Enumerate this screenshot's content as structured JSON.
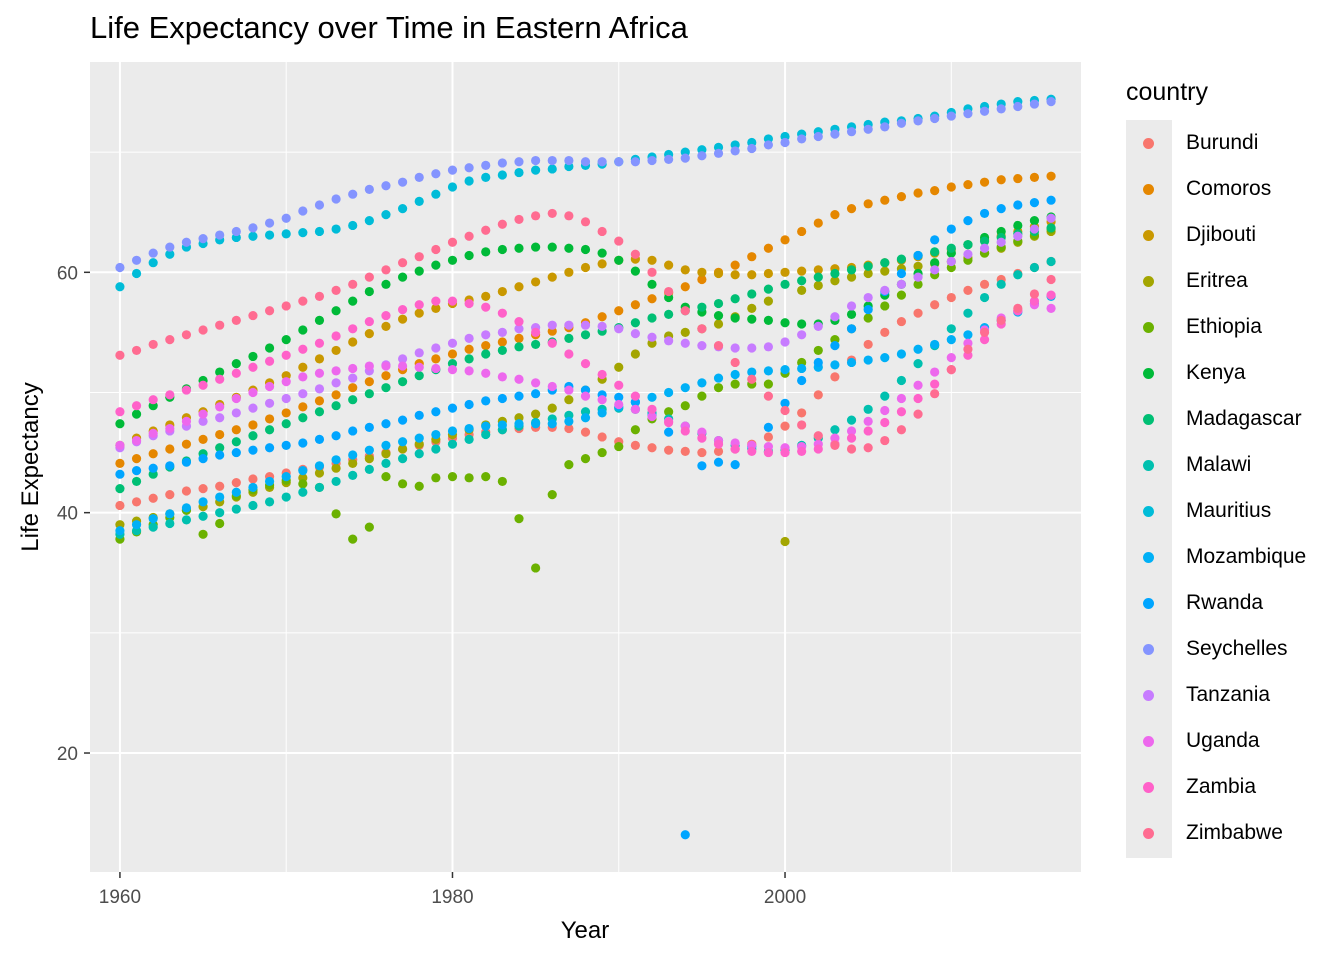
{
  "chart_data": {
    "type": "scatter",
    "title": "Life Expectancy over Time in Eastern Africa",
    "xlabel": "Year",
    "ylabel": "Life Expectancy",
    "xlim": [
      1958.2,
      2017.8
    ],
    "ylim": [
      10.1,
      77.5
    ],
    "xticks": [
      1960,
      1980,
      2000
    ],
    "yticks": [
      20,
      40,
      60
    ],
    "grid": true,
    "legend_title": "country",
    "legend_position": "right",
    "series": [
      {
        "name": "Burundi",
        "color": "#F8766D",
        "x_start": 1960,
        "values": [
          40.6,
          40.9,
          41.2,
          41.5,
          41.8,
          42.0,
          42.2,
          42.5,
          42.8,
          43.0,
          43.3,
          43.6,
          43.8,
          44.1,
          44.4,
          44.7,
          45.0,
          45.3,
          45.6,
          45.9,
          46.2,
          46.5,
          46.7,
          46.9,
          47.0,
          47.1,
          47.1,
          47.0,
          46.7,
          46.3,
          45.9,
          45.6,
          45.4,
          45.2,
          45.1,
          45.0,
          45.1,
          45.3,
          45.7,
          46.3,
          47.2,
          48.3,
          49.8,
          51.3,
          52.7,
          54.0,
          55.0,
          55.9,
          56.6,
          57.3,
          57.9,
          58.5,
          59.0,
          59.4,
          59.9,
          60.4,
          60.9
        ]
      },
      {
        "name": "Comoros",
        "color": "#E58700",
        "x_start": 1960,
        "values": [
          44.1,
          44.5,
          44.9,
          45.3,
          45.7,
          46.1,
          46.5,
          46.9,
          47.3,
          47.8,
          48.3,
          48.8,
          49.3,
          49.8,
          50.4,
          50.9,
          51.4,
          51.9,
          52.4,
          52.8,
          53.2,
          53.6,
          53.9,
          54.2,
          54.5,
          54.8,
          55.1,
          55.4,
          55.8,
          56.3,
          56.8,
          57.3,
          57.8,
          58.3,
          58.8,
          59.4,
          60.0,
          60.6,
          61.3,
          62.0,
          62.7,
          63.4,
          64.1,
          64.8,
          65.3,
          65.7,
          66.0,
          66.3,
          66.6,
          66.8,
          67.1,
          67.3,
          67.5,
          67.7,
          67.8,
          67.9,
          68.0
        ]
      },
      {
        "name": "Djibouti",
        "color": "#C99800",
        "x_start": 1960,
        "values": [
          45.6,
          46.2,
          46.8,
          47.3,
          47.9,
          48.4,
          49.0,
          49.6,
          50.2,
          50.8,
          51.4,
          52.1,
          52.8,
          53.5,
          54.2,
          54.9,
          55.5,
          56.1,
          56.6,
          57.0,
          57.4,
          57.7,
          58.0,
          58.4,
          58.8,
          59.2,
          59.6,
          60.0,
          60.4,
          60.7,
          61.0,
          61.1,
          61.0,
          60.6,
          60.2,
          60.0,
          59.9,
          59.8,
          59.8,
          59.9,
          60.0,
          60.1,
          60.2,
          60.3,
          60.4,
          60.6,
          60.8,
          61.0,
          61.3,
          61.6,
          61.9,
          62.3,
          62.7,
          63.0,
          63.4,
          63.8,
          64.2
        ]
      },
      {
        "name": "Eritrea",
        "color": "#A3A500",
        "x_start": 1960,
        "values": [
          39.0,
          39.3,
          39.6,
          39.9,
          40.2,
          40.5,
          40.9,
          41.3,
          41.7,
          42.1,
          42.5,
          42.9,
          43.3,
          43.7,
          44.1,
          44.5,
          44.9,
          45.3,
          45.7,
          46.1,
          46.5,
          46.9,
          47.3,
          47.6,
          47.9,
          48.2,
          48.7,
          49.4,
          50.2,
          51.1,
          52.1,
          53.2,
          54.1,
          54.7,
          55.0,
          55.3,
          55.7,
          56.3,
          57.0,
          57.6,
          37.6,
          58.5,
          58.9,
          59.3,
          59.6,
          59.9,
          60.1,
          60.3,
          60.5,
          60.7,
          60.9,
          61.2,
          61.6,
          62.0,
          62.5,
          63.0,
          63.4
        ]
      },
      {
        "name": "Ethiopia",
        "color": "#6BB100",
        "x_start": 1960,
        "values": [
          37.8,
          38.4,
          39.0,
          39.6,
          40.2,
          38.2,
          39.1,
          41.4,
          41.9,
          42.3,
          42.7,
          42.4,
          42.1,
          39.9,
          37.8,
          38.8,
          43.0,
          42.4,
          42.2,
          42.9,
          43.0,
          42.9,
          43.0,
          42.6,
          39.5,
          35.4,
          41.5,
          44.0,
          44.5,
          45.0,
          45.5,
          46.9,
          47.8,
          48.4,
          48.9,
          49.7,
          50.4,
          50.7,
          50.7,
          50.7,
          51.6,
          52.5,
          53.5,
          54.4,
          55.3,
          56.2,
          57.2,
          58.1,
          59.0,
          59.8,
          60.4,
          61.0,
          61.6,
          62.1,
          62.6,
          63.1,
          63.6
        ]
      },
      {
        "name": "Kenya",
        "color": "#00BA38",
        "x_start": 1960,
        "values": [
          47.4,
          48.2,
          48.9,
          49.6,
          50.3,
          51.0,
          51.7,
          52.4,
          53.0,
          53.7,
          54.4,
          55.2,
          56.0,
          56.8,
          57.6,
          58.4,
          59.0,
          59.6,
          60.1,
          60.6,
          61.0,
          61.4,
          61.7,
          61.9,
          62.0,
          62.1,
          62.1,
          62.0,
          61.9,
          61.6,
          61.0,
          60.1,
          59.0,
          57.9,
          57.1,
          56.7,
          56.4,
          56.2,
          56.1,
          56.0,
          55.8,
          55.7,
          55.7,
          56.0,
          56.5,
          57.2,
          58.1,
          59.0,
          59.9,
          60.8,
          61.6,
          62.3,
          62.9,
          63.4,
          63.9,
          64.3,
          64.6
        ]
      },
      {
        "name": "Madagascar",
        "color": "#00BF74",
        "x_start": 1960,
        "values": [
          42.0,
          42.6,
          43.2,
          43.8,
          44.3,
          44.9,
          45.4,
          45.9,
          46.4,
          46.9,
          47.4,
          47.9,
          48.4,
          48.9,
          49.4,
          49.9,
          50.4,
          50.9,
          51.4,
          51.9,
          52.4,
          52.8,
          53.2,
          53.5,
          53.8,
          54.0,
          54.2,
          54.5,
          54.8,
          55.1,
          55.4,
          55.8,
          56.2,
          56.5,
          56.8,
          57.1,
          57.4,
          57.8,
          58.2,
          58.6,
          59.0,
          59.3,
          59.6,
          59.9,
          60.2,
          60.5,
          60.8,
          61.1,
          61.4,
          61.7,
          62.0,
          62.3,
          62.6,
          62.9,
          63.2,
          63.4,
          63.7
        ]
      },
      {
        "name": "Malawi",
        "color": "#00C0AF",
        "x_start": 1960,
        "values": [
          38.2,
          38.5,
          38.8,
          39.1,
          39.4,
          39.7,
          40.0,
          40.3,
          40.6,
          40.9,
          41.3,
          41.7,
          42.1,
          42.6,
          43.1,
          43.6,
          44.1,
          44.5,
          44.9,
          45.3,
          45.7,
          46.1,
          46.5,
          46.9,
          47.2,
          47.5,
          47.8,
          48.1,
          48.4,
          48.6,
          48.7,
          48.6,
          48.3,
          47.8,
          47.2,
          46.6,
          46.0,
          45.6,
          45.3,
          45.1,
          45.2,
          45.6,
          46.2,
          46.9,
          47.7,
          48.6,
          49.7,
          51.0,
          52.4,
          53.9,
          55.3,
          56.6,
          57.9,
          59.0,
          59.8,
          60.4,
          60.9
        ]
      },
      {
        "name": "Mauritius",
        "color": "#00BCD8",
        "x_start": 1960,
        "values": [
          58.8,
          59.9,
          60.8,
          61.5,
          62.1,
          62.4,
          62.7,
          62.9,
          63.0,
          63.1,
          63.2,
          63.3,
          63.4,
          63.6,
          63.9,
          64.3,
          64.8,
          65.3,
          65.9,
          66.5,
          67.1,
          67.6,
          67.9,
          68.1,
          68.3,
          68.5,
          68.6,
          68.8,
          68.9,
          69.0,
          69.2,
          69.4,
          69.6,
          69.8,
          70.0,
          70.2,
          70.4,
          70.6,
          70.8,
          71.1,
          71.3,
          71.5,
          71.7,
          71.9,
          72.1,
          72.3,
          72.5,
          72.6,
          72.8,
          73.0,
          73.3,
          73.6,
          73.8,
          74.0,
          74.2,
          74.3,
          74.4
        ]
      },
      {
        "name": "Mozambique",
        "color": "#00B0F6",
        "x_start": 1960,
        "values": [
          38.5,
          39.0,
          39.5,
          39.9,
          40.4,
          40.9,
          41.3,
          41.7,
          42.1,
          42.6,
          43.0,
          43.5,
          43.9,
          44.4,
          44.8,
          45.2,
          45.6,
          45.9,
          46.2,
          46.5,
          46.8,
          47.0,
          47.2,
          47.3,
          47.4,
          47.4,
          47.4,
          47.6,
          47.9,
          48.3,
          48.8,
          49.2,
          49.6,
          50.0,
          50.4,
          50.8,
          51.2,
          51.5,
          51.7,
          51.8,
          51.9,
          52.0,
          52.1,
          52.3,
          52.5,
          52.7,
          52.9,
          53.2,
          53.6,
          54.0,
          54.4,
          54.8,
          55.4,
          56.0,
          56.7,
          57.4,
          58.0
        ]
      },
      {
        "name": "Rwanda",
        "color": "#00A5FF",
        "x_start": 1960,
        "values": [
          43.2,
          43.5,
          43.7,
          43.9,
          44.2,
          44.5,
          44.8,
          45.0,
          45.2,
          45.4,
          45.6,
          45.8,
          46.1,
          46.4,
          46.8,
          47.1,
          47.4,
          47.7,
          48.1,
          48.4,
          48.7,
          49.0,
          49.3,
          49.5,
          49.7,
          49.9,
          50.2,
          50.5,
          50.2,
          49.8,
          49.6,
          49.2,
          48.1,
          46.7,
          13.2,
          43.9,
          44.2,
          44.0,
          45.5,
          47.1,
          49.1,
          51.0,
          52.5,
          53.9,
          55.3,
          56.9,
          58.4,
          59.9,
          61.4,
          62.7,
          63.6,
          64.3,
          64.9,
          65.3,
          65.6,
          65.8,
          66.0
        ]
      },
      {
        "name": "Seychelles",
        "color": "#8494FF",
        "x_start": 1960,
        "values": [
          60.4,
          61.0,
          61.6,
          62.1,
          62.5,
          62.8,
          63.1,
          63.4,
          63.7,
          64.1,
          64.5,
          65.1,
          65.6,
          66.1,
          66.5,
          66.9,
          67.2,
          67.5,
          67.9,
          68.2,
          68.5,
          68.7,
          68.9,
          69.1,
          69.2,
          69.3,
          69.3,
          69.3,
          69.2,
          69.2,
          69.2,
          69.2,
          69.3,
          69.4,
          69.5,
          69.7,
          69.9,
          70.1,
          70.3,
          70.6,
          70.8,
          71.1,
          71.3,
          71.5,
          71.7,
          71.9,
          72.1,
          72.4,
          72.6,
          72.8,
          73.0,
          73.2,
          73.4,
          73.6,
          73.8,
          74.0,
          74.2
        ]
      },
      {
        "name": "Tanzania",
        "color": "#C77CFF",
        "x_start": 1960,
        "values": [
          45.4,
          45.9,
          46.4,
          46.8,
          47.2,
          47.6,
          47.9,
          48.3,
          48.7,
          49.1,
          49.5,
          49.9,
          50.3,
          50.8,
          51.2,
          51.8,
          52.3,
          52.8,
          53.3,
          53.7,
          54.1,
          54.5,
          54.8,
          55.0,
          55.3,
          55.4,
          55.6,
          55.6,
          55.6,
          55.5,
          55.3,
          54.9,
          54.6,
          54.3,
          54.1,
          53.9,
          53.8,
          53.7,
          53.7,
          53.8,
          54.2,
          54.8,
          55.5,
          56.3,
          57.2,
          57.9,
          58.5,
          59.0,
          59.6,
          60.2,
          60.9,
          61.5,
          62.0,
          62.5,
          63.0,
          63.6,
          64.5
        ]
      },
      {
        "name": "Uganda",
        "color": "#ED68ED",
        "x_start": 1960,
        "values": [
          45.6,
          46.0,
          46.6,
          47.0,
          47.6,
          48.2,
          48.8,
          49.5,
          50.0,
          50.5,
          50.9,
          51.3,
          51.6,
          51.8,
          52.0,
          52.2,
          52.2,
          52.2,
          52.1,
          52.0,
          51.9,
          51.8,
          51.6,
          51.3,
          51.1,
          50.8,
          50.5,
          50.2,
          49.7,
          49.4,
          49.0,
          48.6,
          48.0,
          47.6,
          47.2,
          46.7,
          46.0,
          45.8,
          45.6,
          45.5,
          45.4,
          45.5,
          45.7,
          46.2,
          46.8,
          47.6,
          48.5,
          49.5,
          50.6,
          51.7,
          52.9,
          54.1,
          55.2,
          56.2,
          56.8,
          57.3,
          57.0
        ]
      },
      {
        "name": "Zambia",
        "color": "#FF61C9",
        "x_start": 1960,
        "values": [
          48.4,
          48.9,
          49.4,
          49.8,
          50.2,
          50.6,
          51.1,
          51.6,
          52.1,
          52.6,
          53.1,
          53.6,
          54.1,
          54.7,
          55.3,
          55.9,
          56.4,
          56.9,
          57.3,
          57.6,
          57.6,
          57.4,
          57.1,
          56.6,
          55.9,
          55.0,
          54.1,
          53.2,
          52.4,
          51.5,
          50.6,
          49.7,
          48.6,
          47.5,
          46.8,
          46.2,
          45.7,
          45.3,
          45.1,
          45.0,
          45.0,
          45.1,
          45.3,
          45.7,
          46.2,
          46.8,
          47.5,
          48.4,
          49.5,
          50.7,
          51.9,
          53.1,
          54.4,
          55.7,
          56.8,
          57.6,
          58.1
        ]
      },
      {
        "name": "Zimbabwe",
        "color": "#FF6C91",
        "x_start": 1960,
        "values": [
          53.1,
          53.5,
          54.0,
          54.4,
          54.8,
          55.2,
          55.6,
          56.0,
          56.4,
          56.8,
          57.2,
          57.6,
          58.0,
          58.5,
          59.0,
          59.6,
          60.2,
          60.8,
          61.3,
          61.9,
          62.5,
          63.0,
          63.5,
          64.0,
          64.4,
          64.7,
          64.9,
          64.7,
          64.2,
          63.4,
          62.6,
          61.5,
          60.0,
          58.4,
          56.8,
          55.3,
          53.9,
          52.5,
          51.1,
          49.7,
          48.5,
          47.3,
          46.4,
          45.6,
          45.3,
          45.4,
          46.0,
          46.9,
          48.2,
          49.9,
          51.9,
          53.6,
          55.0,
          56.0,
          57.0,
          58.2,
          59.4
        ]
      }
    ]
  }
}
